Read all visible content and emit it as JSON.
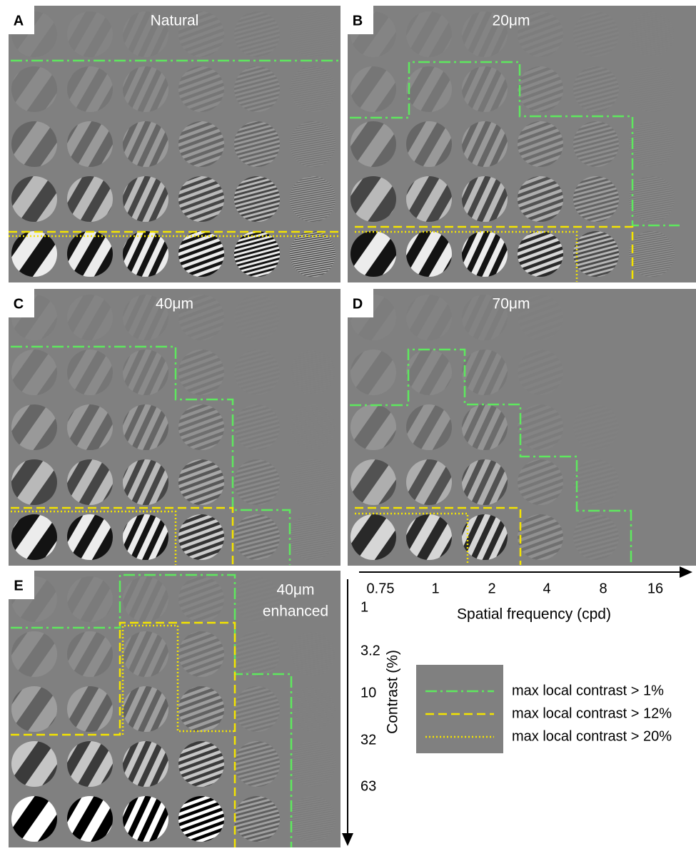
{
  "panels": [
    {
      "letter": "A",
      "title": "Natural"
    },
    {
      "letter": "B",
      "title": "20μm"
    },
    {
      "letter": "C",
      "title": "40μm"
    },
    {
      "letter": "D",
      "title": "70μm"
    },
    {
      "letter": "E",
      "title": "40μm",
      "subtitle": "enhanced"
    }
  ],
  "x_axis": {
    "label": "Spatial frequency (cpd)",
    "ticks": [
      "0.75",
      "1",
      "2",
      "4",
      "8",
      "16"
    ]
  },
  "y_axis": {
    "label": "Contrast (%)",
    "ticks": [
      "1",
      "3.2",
      "10",
      "32",
      "63"
    ]
  },
  "legend": [
    "max local contrast > 1%",
    "max local contrast > 12%",
    "max local contrast > 20%"
  ]
}
